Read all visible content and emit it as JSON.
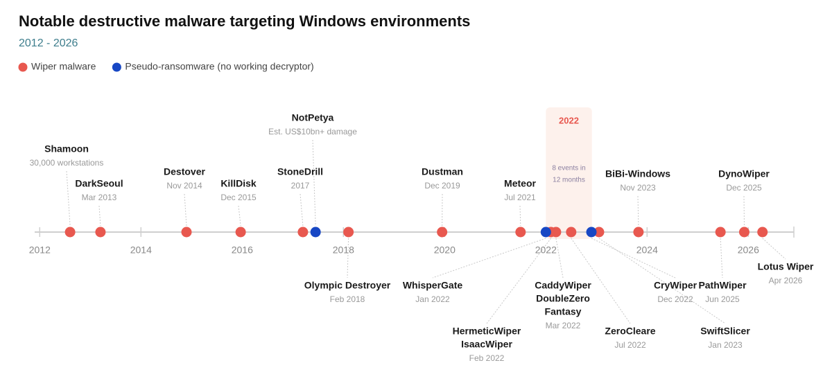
{
  "chart_data": {
    "type": "timeline",
    "title": "Notable destructive malware targeting Windows environments",
    "subtitle": "2012 - 2026",
    "xlim": [
      2011.9,
      2026.9
    ],
    "xticks": [
      2012,
      2014,
      2016,
      2018,
      2020,
      2022,
      2024,
      2026
    ],
    "highlight": {
      "label": "2022",
      "note": [
        "8 events in",
        "12 months"
      ],
      "range": [
        2022,
        2022.91
      ]
    },
    "series": [
      {
        "name": "Wiper malware",
        "color": "#e8584f",
        "events": [
          {
            "names": [
              "Shamoon"
            ],
            "date": "30,000 workstations",
            "x": 2012.6
          },
          {
            "names": [
              "DarkSeoul"
            ],
            "date": "Mar 2013",
            "x": 2013.2
          },
          {
            "names": [
              "Destover"
            ],
            "date": "Nov 2014",
            "x": 2014.9
          },
          {
            "names": [
              "KillDisk"
            ],
            "date": "Dec 2015",
            "x": 2015.97
          },
          {
            "names": [
              "StoneDrill"
            ],
            "date": "2017",
            "x": 2017.2
          },
          {
            "names": [
              "Olympic Destroyer"
            ],
            "date": "Feb 2018",
            "x": 2018.1
          },
          {
            "names": [
              "Dustman"
            ],
            "date": "Dec 2019",
            "x": 2019.95
          },
          {
            "names": [
              "Meteor"
            ],
            "date": "Jul 2021",
            "x": 2021.5
          },
          {
            "names": [
              "HermeticWiper",
              "IsaacWiper"
            ],
            "date": "Feb 2022",
            "x": 2022.1
          },
          {
            "names": [
              "CaddyWiper",
              "DoubleZero",
              "Fantasy"
            ],
            "date": "Mar 2022",
            "x": 2022.2
          },
          {
            "names": [
              "ZeroCleare"
            ],
            "date": "Jul 2022",
            "x": 2022.5
          },
          {
            "names": [
              "SwiftSlicer"
            ],
            "date": "Jan 2023",
            "x": 2023.05
          },
          {
            "names": [
              "BiBi-Windows"
            ],
            "date": "Nov 2023",
            "x": 2023.83
          },
          {
            "names": [
              "PathWiper"
            ],
            "date": "Jun 2025",
            "x": 2025.45
          },
          {
            "names": [
              "DynoWiper"
            ],
            "date": "Dec 2025",
            "x": 2025.92
          },
          {
            "names": [
              "Lotus Wiper"
            ],
            "date": "Apr 2026",
            "x": 2026.28
          }
        ]
      },
      {
        "name": "Pseudo-ransomware (no working decryptor)",
        "color": "#1747c4",
        "events": [
          {
            "names": [
              "NotPetya"
            ],
            "date": "Est. US$10bn+ damage",
            "x": 2017.45
          },
          {
            "names": [
              "WhisperGate"
            ],
            "date": "Jan 2022",
            "x": 2022.0
          },
          {
            "names": [
              "CryWiper"
            ],
            "date": "Dec 2022",
            "x": 2022.9
          }
        ]
      }
    ]
  }
}
